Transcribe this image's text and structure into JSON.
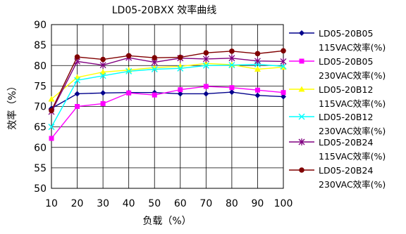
{
  "chart_data": {
    "type": "line",
    "title": "LD05-20BXX 效率曲线",
    "xlabel": "负载（%）",
    "ylabel": "效率（%）",
    "x": [
      10,
      20,
      30,
      40,
      50,
      60,
      70,
      80,
      90,
      100
    ],
    "xlim": [
      10,
      100
    ],
    "ylim": [
      50,
      90
    ],
    "yticks": [
      50,
      55,
      60,
      65,
      70,
      75,
      80,
      85,
      90
    ],
    "grid": true,
    "legend_position": "right",
    "series": [
      {
        "name_line1": "LD05-20B05",
        "name_line2": "115VAC效率(%)",
        "color": "#00008B",
        "marker": "diamond",
        "values": [
          69.5,
          73.1,
          73.3,
          73.4,
          73.4,
          73.1,
          73.1,
          73.5,
          72.7,
          72.4
        ]
      },
      {
        "name_line1": "LD05-20B05",
        "name_line2": "230VAC效率(%)",
        "color": "#FF00FF",
        "marker": "square",
        "values": [
          62.2,
          70.0,
          70.7,
          73.3,
          72.8,
          74.1,
          74.9,
          74.6,
          74.0,
          73.4
        ]
      },
      {
        "name_line1": "LD05-20B12",
        "name_line2": "115VAC效率(%)",
        "color": "#FFFF00",
        "marker": "triangle",
        "values": [
          71.8,
          77.1,
          78.4,
          78.9,
          79.5,
          79.8,
          80.5,
          80.2,
          79.1,
          79.6
        ]
      },
      {
        "name_line1": "LD05-20B12",
        "name_line2": "230VAC效率(%)",
        "color": "#00FFFF",
        "marker": "x",
        "values": [
          65.0,
          76.4,
          77.5,
          78.6,
          79.1,
          79.3,
          80.0,
          80.1,
          80.3,
          79.8
        ]
      },
      {
        "name_line1": "LD05-20B24",
        "name_line2": "115VAC效率(%)",
        "color": "#800080",
        "marker": "asterisk",
        "values": [
          68.7,
          81.0,
          80.1,
          81.9,
          80.8,
          81.8,
          81.6,
          81.8,
          81.1,
          81.0
        ]
      },
      {
        "name_line1": "LD05-20B24",
        "name_line2": "230VAC效率(%)",
        "color": "#800000",
        "marker": "circle",
        "values": [
          69.0,
          82.1,
          81.5,
          82.4,
          81.9,
          82.0,
          83.1,
          83.5,
          82.9,
          83.6
        ]
      }
    ]
  }
}
